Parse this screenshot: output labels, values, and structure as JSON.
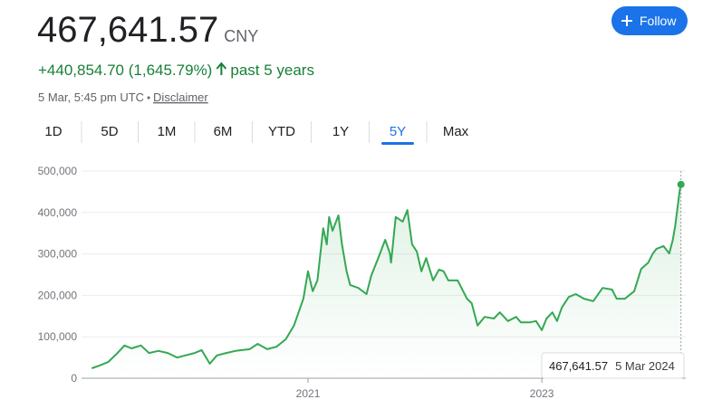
{
  "quote": {
    "price": "467,641.57",
    "currency": "CNY",
    "change": "+440,854.70 (1,645.79%)",
    "period": "past 5 years",
    "timestamp": "5 Mar, 5:45 pm UTC",
    "disclaimer": "Disclaimer"
  },
  "follow_button": "Follow",
  "ranges": [
    "1D",
    "5D",
    "1M",
    "6M",
    "YTD",
    "1Y",
    "5Y",
    "Max"
  ],
  "selected_range": "5Y",
  "chart_data": {
    "type": "line",
    "color": "#34a853",
    "x": [
      2019.15,
      2019.22,
      2019.29,
      2019.37,
      2019.43,
      2019.49,
      2019.57,
      2019.64,
      2019.72,
      2019.8,
      2019.88,
      2019.95,
      2020.03,
      2020.09,
      2020.16,
      2020.22,
      2020.3,
      2020.38,
      2020.5,
      2020.57,
      2020.65,
      2020.73,
      2020.81,
      2020.88,
      2020.96,
      2021.0,
      2021.04,
      2021.08,
      2021.13,
      2021.16,
      2021.18,
      2021.21,
      2021.26,
      2021.29,
      2021.33,
      2021.36,
      2021.43,
      2021.5,
      2021.54,
      2021.6,
      2021.66,
      2021.7,
      2021.71,
      2021.75,
      2021.81,
      2021.85,
      2021.89,
      2021.93,
      2021.97,
      2022.01,
      2022.07,
      2022.12,
      2022.16,
      2022.2,
      2022.28,
      2022.36,
      2022.4,
      2022.45,
      2022.51,
      2022.59,
      2022.64,
      2022.71,
      2022.78,
      2022.82,
      2022.9,
      2022.95,
      2023.0,
      2023.04,
      2023.09,
      2023.13,
      2023.17,
      2023.23,
      2023.29,
      2023.36,
      2023.44,
      2023.52,
      2023.6,
      2023.64,
      2023.71,
      2023.79,
      2023.85,
      2023.91,
      2023.95,
      2023.98,
      2024.04,
      2024.09,
      2024.12,
      2024.14,
      2024.16,
      2024.18,
      2024.19
    ],
    "values": [
      24000,
      31000,
      39000,
      61000,
      79000,
      72000,
      79000,
      61000,
      66000,
      61000,
      50000,
      55000,
      61000,
      68000,
      35000,
      55000,
      61000,
      66000,
      70000,
      83000,
      70000,
      76000,
      94000,
      127000,
      192000,
      258000,
      210000,
      236000,
      362000,
      323000,
      389000,
      356000,
      393000,
      323000,
      258000,
      225000,
      218000,
      203000,
      247000,
      290000,
      334000,
      301000,
      279000,
      389000,
      378000,
      406000,
      323000,
      306000,
      258000,
      290000,
      236000,
      262000,
      258000,
      236000,
      236000,
      192000,
      181000,
      127000,
      148000,
      144000,
      159000,
      138000,
      148000,
      135000,
      135000,
      138000,
      116000,
      144000,
      159000,
      138000,
      170000,
      196000,
      203000,
      192000,
      186000,
      218000,
      214000,
      192000,
      192000,
      210000,
      264000,
      279000,
      301000,
      312000,
      319000,
      301000,
      334000,
      367000,
      410000,
      454000,
      467641.57
    ],
    "xlim": [
      2019.14,
      2024.2
    ],
    "xticks": [
      2021,
      2023
    ],
    "ylim": [
      0,
      500000
    ],
    "yticks": [
      0,
      {
        "value": 100000,
        "label": "100,000"
      },
      {
        "value": 200000,
        "label": "200,000"
      },
      {
        "value": 300000,
        "label": "300,000"
      },
      {
        "value": 400000,
        "label": "400,000"
      },
      {
        "value": 500000,
        "label": "500,000"
      }
    ],
    "grid": true,
    "tooltip": {
      "value": "467,641.57",
      "date": "5 Mar 2024"
    }
  }
}
